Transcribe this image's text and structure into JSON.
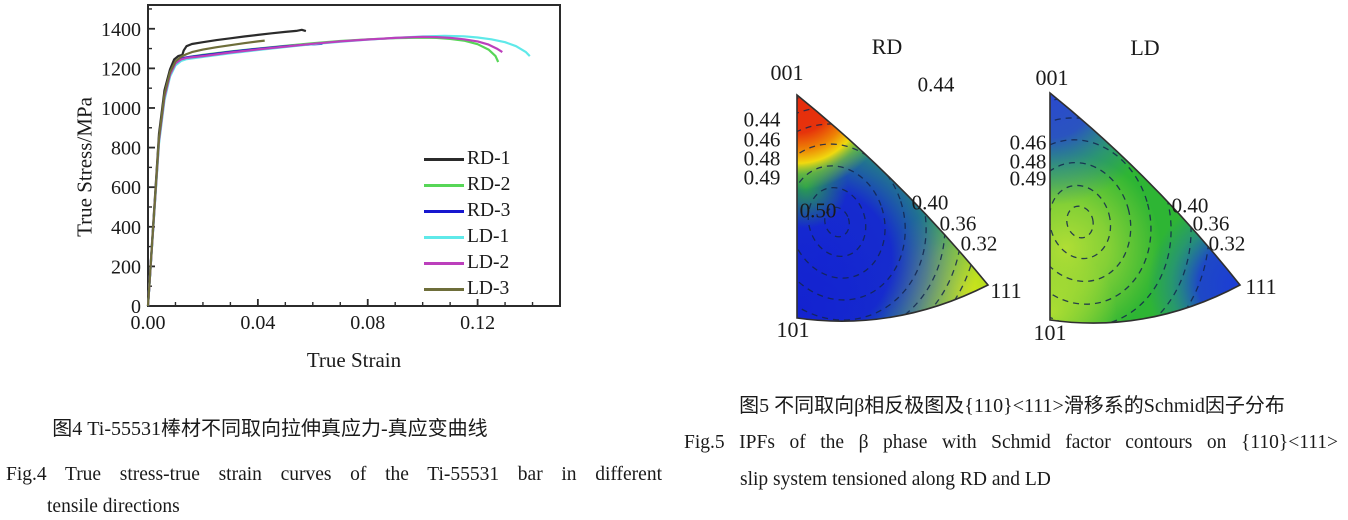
{
  "chart_data": [
    {
      "type": "line",
      "name": "stress-strain-curves",
      "xlabel": "True Strain",
      "ylabel": "True Stress/MPa",
      "xlim": [
        0,
        0.15
      ],
      "ylim": [
        0,
        1520
      ],
      "xticks": [
        0,
        0.04,
        0.08,
        0.12
      ],
      "xtick_labels": [
        "0.00",
        "0.04",
        "0.08",
        "0.12"
      ],
      "x_minor_step": 0.01,
      "yticks": [
        0,
        200,
        400,
        600,
        800,
        1000,
        1200,
        1400
      ],
      "ytick_labels": [
        "0",
        "200",
        "400",
        "600",
        "800",
        "1000",
        "1200",
        "1400"
      ],
      "y_minor_step": 100,
      "grid": false,
      "legend_position": "inside-right",
      "frame_color": "#2b2b2b",
      "series": [
        {
          "name": "RD-1",
          "color": "#2b2b2b",
          "points": [
            [
              0,
              0
            ],
            [
              0.004,
              870
            ],
            [
              0.006,
              1090
            ],
            [
              0.008,
              1195
            ],
            [
              0.0095,
              1245
            ],
            [
              0.011,
              1262
            ],
            [
              0.0125,
              1268
            ],
            [
              0.013,
              1290
            ],
            [
              0.014,
              1312
            ],
            [
              0.016,
              1323
            ],
            [
              0.02,
              1332
            ],
            [
              0.025,
              1343
            ],
            [
              0.03,
              1352
            ],
            [
              0.035,
              1361
            ],
            [
              0.04,
              1369
            ],
            [
              0.045,
              1377
            ],
            [
              0.05,
              1384
            ],
            [
              0.054,
              1389
            ],
            [
              0.056,
              1395
            ],
            [
              0.0575,
              1388
            ]
          ]
        },
        {
          "name": "RD-2",
          "color": "#57d657",
          "points": [
            [
              0,
              0
            ],
            [
              0.004,
              830
            ],
            [
              0.006,
              1050
            ],
            [
              0.008,
              1165
            ],
            [
              0.01,
              1222
            ],
            [
              0.012,
              1244
            ],
            [
              0.014,
              1254
            ],
            [
              0.016,
              1260
            ],
            [
              0.02,
              1268
            ],
            [
              0.03,
              1285
            ],
            [
              0.04,
              1300
            ],
            [
              0.05,
              1314
            ],
            [
              0.06,
              1327
            ],
            [
              0.07,
              1338
            ],
            [
              0.08,
              1347
            ],
            [
              0.09,
              1353
            ],
            [
              0.1,
              1355
            ],
            [
              0.105,
              1354
            ],
            [
              0.11,
              1349
            ],
            [
              0.115,
              1340
            ],
            [
              0.12,
              1322
            ],
            [
              0.124,
              1295
            ],
            [
              0.1265,
              1262
            ],
            [
              0.1275,
              1232
            ]
          ]
        },
        {
          "name": "RD-3",
          "color": "#1717cf",
          "points": [
            [
              0,
              0
            ],
            [
              0.004,
              840
            ],
            [
              0.006,
              1060
            ],
            [
              0.008,
              1172
            ],
            [
              0.01,
              1228
            ],
            [
              0.012,
              1248
            ],
            [
              0.014,
              1256
            ],
            [
              0.02,
              1266
            ],
            [
              0.03,
              1283
            ],
            [
              0.04,
              1299
            ],
            [
              0.05,
              1312
            ],
            [
              0.057,
              1319
            ],
            [
              0.0635,
              1324
            ]
          ]
        },
        {
          "name": "LD-1",
          "color": "#5fe9e9",
          "points": [
            [
              0,
              0
            ],
            [
              0.004,
              820
            ],
            [
              0.006,
              1040
            ],
            [
              0.008,
              1158
            ],
            [
              0.01,
              1215
            ],
            [
              0.012,
              1237
            ],
            [
              0.014,
              1247
            ],
            [
              0.02,
              1258
            ],
            [
              0.03,
              1276
            ],
            [
              0.04,
              1293
            ],
            [
              0.05,
              1308
            ],
            [
              0.06,
              1322
            ],
            [
              0.07,
              1334
            ],
            [
              0.08,
              1345
            ],
            [
              0.09,
              1354
            ],
            [
              0.1,
              1361
            ],
            [
              0.108,
              1364
            ],
            [
              0.115,
              1362
            ],
            [
              0.12,
              1356
            ],
            [
              0.125,
              1347
            ],
            [
              0.13,
              1332
            ],
            [
              0.134,
              1312
            ],
            [
              0.1375,
              1283
            ],
            [
              0.139,
              1262
            ]
          ]
        },
        {
          "name": "LD-2",
          "color": "#bc3fbc",
          "points": [
            [
              0,
              0
            ],
            [
              0.004,
              835
            ],
            [
              0.006,
              1055
            ],
            [
              0.008,
              1168
            ],
            [
              0.01,
              1225
            ],
            [
              0.012,
              1245
            ],
            [
              0.014,
              1253
            ],
            [
              0.02,
              1262
            ],
            [
              0.03,
              1280
            ],
            [
              0.04,
              1296
            ],
            [
              0.05,
              1310
            ],
            [
              0.06,
              1324
            ],
            [
              0.07,
              1336
            ],
            [
              0.08,
              1346
            ],
            [
              0.09,
              1354
            ],
            [
              0.095,
              1357
            ],
            [
              0.1,
              1359
            ],
            [
              0.105,
              1358
            ],
            [
              0.11,
              1354
            ],
            [
              0.115,
              1347
            ],
            [
              0.12,
              1336
            ],
            [
              0.124,
              1320
            ],
            [
              0.127,
              1300
            ],
            [
              0.129,
              1282
            ]
          ]
        },
        {
          "name": "LD-3",
          "color": "#6e6e3a",
          "points": [
            [
              0,
              0
            ],
            [
              0.004,
              850
            ],
            [
              0.006,
              1070
            ],
            [
              0.008,
              1180
            ],
            [
              0.01,
              1235
            ],
            [
              0.012,
              1258
            ],
            [
              0.014,
              1272
            ],
            [
              0.016,
              1282
            ],
            [
              0.02,
              1295
            ],
            [
              0.025,
              1307
            ],
            [
              0.03,
              1317
            ],
            [
              0.035,
              1327
            ],
            [
              0.04,
              1336
            ],
            [
              0.0425,
              1340
            ]
          ]
        }
      ]
    },
    {
      "type": "heatmap",
      "name": "ipf-schmid-contours-RD",
      "title": "RD",
      "contour_levels": [
        0.32,
        0.36,
        0.4,
        0.44,
        0.46,
        0.48,
        0.49,
        0.5
      ],
      "labels": {
        "corner_top": "001",
        "corner_bottom_left": "101",
        "corner_right": "111",
        "left": [
          "0.44",
          "0.46",
          "0.48",
          "0.49"
        ],
        "center": "0.50",
        "top": "0.44",
        "right": [
          "0.40",
          "0.36",
          "0.32"
        ]
      },
      "colors": {
        "max_region": "#e8270e",
        "mid_region": "#2eb534",
        "min_region": "#1628d2",
        "corner111_region": "#d8e81e"
      }
    },
    {
      "type": "heatmap",
      "name": "ipf-schmid-contours-LD",
      "title": "LD",
      "contour_levels": [
        0.32,
        0.36,
        0.4,
        0.46,
        0.48,
        0.49
      ],
      "labels": {
        "corner_top": "001",
        "corner_bottom_left": "101",
        "corner_right": "111",
        "left": [
          "0.46",
          "0.48",
          "0.49"
        ],
        "right": [
          "0.40",
          "0.36",
          "0.32"
        ]
      },
      "colors": {
        "apex_region": "#2a49cf",
        "mid_region": "#2eb534",
        "center_region": "#b7e035",
        "corner111_region": "#1c3cd6"
      }
    }
  ],
  "captions": {
    "fig4_zh": "图4 Ti-55531棒材不同取向拉伸真应力-真应变曲线",
    "fig4_en_line1": "Fig.4 True stress-true strain curves of the Ti-55531 bar in different",
    "fig4_en_line2": "tensile directions",
    "fig5_zh": "图5 不同取向β相反极图及{110}<111>滑移系的Schmid因子分布",
    "fig5_en_line1": "Fig.5 IPFs of the β phase with Schmid factor contours on {110}<111>",
    "fig5_en_line2": "slip system tensioned along RD and LD"
  }
}
